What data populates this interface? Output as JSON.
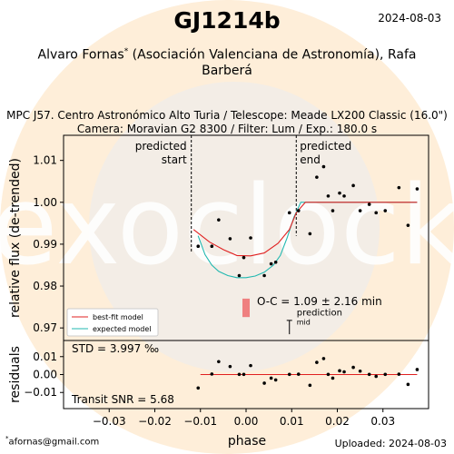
{
  "header": {
    "title": "GJ1214b",
    "date": "2024-08-03",
    "authors_line1": "Alvaro Fornas",
    "author_mark": "*",
    "authors_line1_rest": " (Asociación Valenciana de Astronomía), Rafa",
    "authors_line2": "Barberá",
    "observatory_line": "MPC J57. Centro Astronómico Alto Turia / Telescope: Meade LX200 Classic (16.0\")",
    "camera_line": "Camera: Moravian G2 8300 / Filter: Lum / Exp.: 180.0 s"
  },
  "footer": {
    "email_mark": "*",
    "email": "afornas@gmail.com",
    "uploaded": "Uploaded: 2024-08-03"
  },
  "watermark": {
    "text": "exoclock"
  },
  "colors": {
    "best_fit": "#e02020",
    "expected": "#20b8b0",
    "oc_bar": "#ef8080",
    "points": "#000000",
    "watermark_circle": "#fde8cc"
  },
  "chart_data": {
    "type": "scatter",
    "xlabel": "phase",
    "top_panel": {
      "ylabel": "relative flux (de-trended)",
      "xlim": [
        -0.04,
        0.04
      ],
      "ylim": [
        0.967,
        1.016
      ],
      "yticks": [
        0.97,
        0.98,
        0.99,
        1.0,
        1.01
      ],
      "ytick_labels": [
        "0.97",
        "0.98",
        "0.99",
        "1.00",
        "1.01"
      ],
      "annotations": {
        "predicted_start": {
          "x": -0.012,
          "label_line1": "predicted",
          "label_line2": "start"
        },
        "predicted_end": {
          "x": 0.011,
          "label_line1": "predicted",
          "label_line2": "end"
        },
        "oc_text": "O-C = 1.09 ± 2.16 min",
        "prediction_mid_label1": "prediction",
        "prediction_mid_label2": "mid"
      },
      "legend": {
        "placement": "lower-left",
        "entries": [
          "best-fit model",
          "expected model"
        ]
      },
      "series": [
        {
          "name": "data",
          "x": [
            -0.0105,
            -0.0075,
            -0.006,
            -0.0035,
            -0.0015,
            -0.0005,
            0.001,
            0.004,
            0.0055,
            0.0065,
            0.0095,
            0.0115,
            0.014,
            0.0155,
            0.017,
            0.018,
            0.019,
            0.0205,
            0.0215,
            0.0235,
            0.025,
            0.027,
            0.0285,
            0.0305,
            0.0335,
            0.0355,
            0.0375
          ],
          "y": [
            0.9895,
            0.9895,
            0.9958,
            0.9913,
            0.9825,
            0.9868,
            0.9915,
            0.9825,
            0.9853,
            0.9857,
            0.9975,
            0.998,
            0.9925,
            1.006,
            1.0085,
            1.0015,
            0.998,
            1.0022,
            1.0015,
            1.004,
            0.998,
            0.9995,
            0.9975,
            0.998,
            1.0035,
            0.9945,
            1.0032
          ]
        },
        {
          "name": "best-fit model",
          "x": [
            -0.0115,
            -0.008,
            -0.005,
            -0.002,
            0.001,
            0.004,
            0.007,
            0.0095,
            0.011,
            0.013,
            0.02,
            0.03,
            0.0375
          ],
          "y": [
            0.9935,
            0.9905,
            0.9887,
            0.9873,
            0.9872,
            0.9879,
            0.9902,
            0.9935,
            0.9975,
            1.0,
            1.0,
            1.0,
            1.0
          ]
        },
        {
          "name": "expected model",
          "x": [
            -0.0105,
            -0.009,
            -0.0075,
            -0.006,
            -0.004,
            -0.002,
            0.0,
            0.002,
            0.004,
            0.006,
            0.0075,
            0.009,
            0.0105,
            0.012,
            0.02,
            0.03,
            0.0375
          ],
          "y": [
            0.992,
            0.9875,
            0.985,
            0.9835,
            0.9825,
            0.982,
            0.982,
            0.9824,
            0.9833,
            0.985,
            0.9873,
            0.9915,
            0.9965,
            1.0,
            1.0,
            1.0,
            1.0
          ]
        }
      ],
      "oc_bar": {
        "x": 0.0,
        "y_low": 0.9726,
        "y_high": 0.977
      }
    },
    "bottom_panel": {
      "ylabel": "residuals",
      "ylim": [
        -0.019,
        0.019
      ],
      "yticks": [
        -0.01,
        0.0,
        0.01
      ],
      "ytick_labels": [
        "−0.01",
        "0.00",
        "0.01"
      ],
      "std_text": "STD = 3.997 ‰",
      "snr_text": "Transit SNR = 5.68",
      "residuals": [
        -0.0075,
        0.0003,
        0.0072,
        0.0045,
        0.0001,
        0.0001,
        0.005,
        -0.0048,
        -0.002,
        -0.003,
        0.0001,
        0.0002,
        -0.006,
        0.0068,
        0.0089,
        0.0001,
        -0.002,
        0.0021,
        0.0015,
        0.004,
        0.0019,
        0.0001,
        -0.001,
        0.0001,
        0.0002,
        -0.0055,
        0.0028
      ],
      "xticks": [
        -0.03,
        -0.02,
        -0.01,
        0.0,
        0.01,
        0.02,
        0.03
      ],
      "xtick_labels": [
        "−0.03",
        "−0.02",
        "−0.01",
        "0.00",
        "0.01",
        "0.02",
        "0.03"
      ]
    }
  }
}
